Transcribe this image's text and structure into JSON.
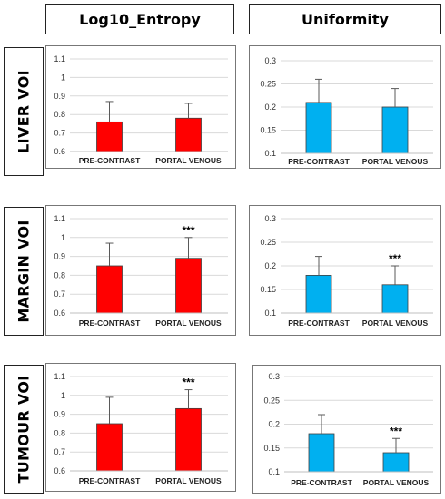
{
  "column_headers": [
    "Log10_Entropy",
    "Uniformity"
  ],
  "row_labels": [
    "LIVER VOI",
    "MARGIN VOI",
    "TUMOUR VOI"
  ],
  "colors": {
    "entropy_bar": "#ff0000",
    "uniformity_bar": "#00b0f0",
    "grid": "#d9d9d9",
    "error_bar": "#595959"
  },
  "chart_data": [
    {
      "type": "bar",
      "row": "LIVER VOI",
      "column": "Log10_Entropy",
      "categories": [
        "PRE-CONTRAST",
        "PORTAL VENOUS"
      ],
      "values": [
        0.76,
        0.78
      ],
      "errors": [
        0.11,
        0.08
      ],
      "yticks": [
        "0.6",
        "0.7",
        "0.8",
        "0.9",
        "1",
        "1.1"
      ],
      "ylim": [
        0.6,
        1.1
      ],
      "annotations": [
        "",
        ""
      ],
      "grid": true
    },
    {
      "type": "bar",
      "row": "LIVER VOI",
      "column": "Uniformity",
      "categories": [
        "PRE-CONTRAST",
        "PORTAL VENOUS"
      ],
      "values": [
        0.21,
        0.2
      ],
      "errors": [
        0.05,
        0.04
      ],
      "yticks": [
        "0.1",
        "0.15",
        "0.2",
        "0.25",
        "0.3"
      ],
      "ylim": [
        0.1,
        0.3
      ],
      "annotations": [
        "",
        ""
      ],
      "grid": true
    },
    {
      "type": "bar",
      "row": "MARGIN VOI",
      "column": "Log10_Entropy",
      "categories": [
        "PRE-CONTRAST",
        "PORTAL VENOUS"
      ],
      "values": [
        0.85,
        0.89
      ],
      "errors": [
        0.12,
        0.11
      ],
      "yticks": [
        "0.6",
        "0.7",
        "0.8",
        "0.9",
        "1",
        "1.1"
      ],
      "ylim": [
        0.6,
        1.1
      ],
      "annotations": [
        "",
        "***"
      ],
      "grid": true
    },
    {
      "type": "bar",
      "row": "MARGIN VOI",
      "column": "Uniformity",
      "categories": [
        "PRE-CONTRAST",
        "PORTAL VENOUS"
      ],
      "values": [
        0.18,
        0.16
      ],
      "errors": [
        0.04,
        0.04
      ],
      "yticks": [
        "0.1",
        "0.15",
        "0.2",
        "0.25",
        "0.3"
      ],
      "ylim": [
        0.1,
        0.3
      ],
      "annotations": [
        "",
        "***"
      ],
      "grid": true
    },
    {
      "type": "bar",
      "row": "TUMOUR VOI",
      "column": "Log10_Entropy",
      "categories": [
        "PRE-CONTRAST",
        "PORTAL VENOUS"
      ],
      "values": [
        0.85,
        0.93
      ],
      "errors": [
        0.14,
        0.1
      ],
      "yticks": [
        "0.6",
        "0.7",
        "0.8",
        "0.9",
        "1",
        "1.1"
      ],
      "ylim": [
        0.6,
        1.1
      ],
      "annotations": [
        "",
        "***"
      ],
      "grid": true
    },
    {
      "type": "bar",
      "row": "TUMOUR VOI",
      "column": "Uniformity",
      "categories": [
        "PRE-CONTRAST",
        "PORTAL VENOUS"
      ],
      "values": [
        0.18,
        0.14
      ],
      "errors": [
        0.04,
        0.03
      ],
      "yticks": [
        "0.1",
        "0.15",
        "0.2",
        "0.25",
        "0.3"
      ],
      "ylim": [
        0.1,
        0.3
      ],
      "annotations": [
        "",
        "***"
      ],
      "grid": true
    }
  ]
}
